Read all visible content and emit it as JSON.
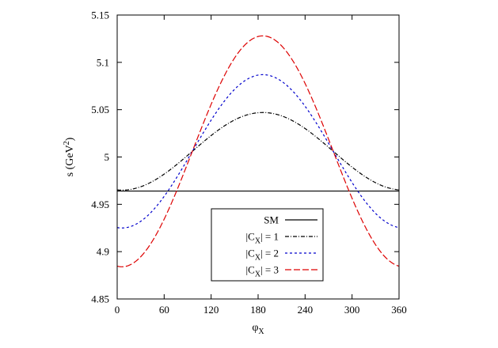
{
  "chart_data": {
    "type": "line",
    "title": "",
    "xlabel": {
      "main": "φ",
      "sub": "X"
    },
    "ylabel": {
      "main": "s (GeV",
      "sup": "2",
      "end": ")"
    },
    "xlim": [
      0,
      360
    ],
    "ylim": [
      4.85,
      5.15
    ],
    "xticks": [
      0,
      60,
      120,
      180,
      240,
      300,
      360
    ],
    "xtick_labels": [
      "0",
      "60",
      "120",
      "180",
      "240",
      "300",
      "360"
    ],
    "yticks": [
      4.85,
      4.9,
      4.95,
      5.0,
      5.05,
      5.1,
      5.15
    ],
    "ytick_labels": [
      "4.85",
      "4.9",
      "4.95",
      "5",
      "5.05",
      "5.1",
      "5.15"
    ],
    "grid": false,
    "legend_position": "bottom-center",
    "series": [
      {
        "name": "SM",
        "label_prefix": "SM",
        "label_sub": "",
        "label_suffix": "",
        "color": "#000000",
        "dash": "",
        "mean": 4.964,
        "amplitude": 0.0,
        "peak_deg": 186
      },
      {
        "name": "|CX| = 1",
        "label_prefix": "|C",
        "label_sub": "X",
        "label_suffix": "| = 1",
        "color": "#000000",
        "dash": "5,2,1,2",
        "mean": 5.006,
        "amplitude": 0.041,
        "peak_deg": 186
      },
      {
        "name": "|CX| = 2",
        "label_prefix": "|C",
        "label_sub": "X",
        "label_suffix": "| = 2",
        "color": "#0000cc",
        "dash": "3,3",
        "mean": 5.006,
        "amplitude": 0.081,
        "peak_deg": 186
      },
      {
        "name": "|CX| = 3",
        "label_prefix": "|C",
        "label_sub": "X",
        "label_suffix": "| = 3",
        "color": "#dd0000",
        "dash": "8,3",
        "mean": 5.006,
        "amplitude": 0.122,
        "peak_deg": 186
      }
    ]
  }
}
